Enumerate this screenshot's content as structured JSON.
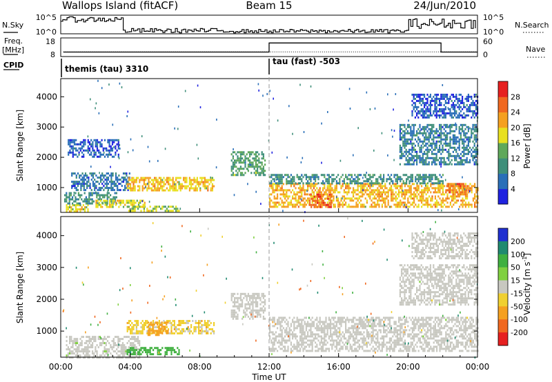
{
  "header": {
    "site": "Wallops Island (fitACF)",
    "beam": "Beam 15",
    "date": "24/Jun/2010"
  },
  "top_panels": {
    "nsky": {
      "left_label": "N.Sky",
      "right_label": "N.Search",
      "ticks_left": [
        "10^5",
        "10^0"
      ],
      "ticks_right": [
        "10^5",
        "10^0"
      ]
    },
    "freq": {
      "left_label_line1": "Freq.",
      "left_label_line2": "[MHz]",
      "right_label": "Nave",
      "ticks_left": [
        "18",
        "8"
      ],
      "ticks_right": [
        "60",
        "0"
      ]
    },
    "cpid": {
      "label": "CPID",
      "segments": [
        {
          "start_hour": 0.0,
          "end_hour": 12.0,
          "text": "themis (tau) 3310"
        },
        {
          "start_hour": 12.0,
          "end_hour": 24.0,
          "text": "tau (fast) -503"
        }
      ]
    }
  },
  "chart_data": [
    {
      "type": "heatmap",
      "title": "",
      "xlabel": "Time UT",
      "ylabel": "Slant Range [km]",
      "xlim": [
        0,
        24
      ],
      "ylim": [
        180,
        4600
      ],
      "x_ticks": [
        "00:00",
        "04:00",
        "08:00",
        "12:00",
        "16:00",
        "20:00",
        "00:00"
      ],
      "y_ticks": [
        "1000",
        "2000",
        "3000",
        "4000"
      ],
      "colorbar": {
        "label": "Power [dB]",
        "range": [
          0,
          30
        ],
        "ticks": [
          "4",
          "8",
          "12",
          "16",
          "20",
          "24",
          "28"
        ],
        "colors": [
          "#1f22e0",
          "#2a6fb8",
          "#3f8f7a",
          "#5fa85a",
          "#e8e020",
          "#f5a020",
          "#f06820",
          "#e62020"
        ]
      },
      "regions": [
        {
          "t0": 0.3,
          "t1": 1.6,
          "r0": 180,
          "r1": 450,
          "mean": 18
        },
        {
          "t0": 0.2,
          "t1": 3.2,
          "r0": 500,
          "r1": 850,
          "mean": 10
        },
        {
          "t0": 0.6,
          "t1": 4.0,
          "r0": 950,
          "r1": 1500,
          "mean": 7
        },
        {
          "t0": 2.0,
          "t1": 4.8,
          "r0": 350,
          "r1": 600,
          "mean": 18
        },
        {
          "t0": 3.8,
          "t1": 6.8,
          "r0": 250,
          "r1": 400,
          "mean": 16
        },
        {
          "t0": 3.8,
          "t1": 8.8,
          "r0": 900,
          "r1": 1350,
          "mean": 20
        },
        {
          "t0": 0.4,
          "t1": 3.3,
          "r0": 2000,
          "r1": 2600,
          "mean": 5
        },
        {
          "t0": 9.8,
          "t1": 11.8,
          "r0": 1400,
          "r1": 2200,
          "mean": 12
        },
        {
          "t0": 12.0,
          "t1": 24.0,
          "r0": 350,
          "r1": 1150,
          "mean": 21
        },
        {
          "t0": 12.0,
          "t1": 22.0,
          "r0": 1150,
          "r1": 1450,
          "mean": 10
        },
        {
          "t0": 14.3,
          "t1": 15.6,
          "r0": 350,
          "r1": 800,
          "mean": 27
        },
        {
          "t0": 22.2,
          "t1": 23.4,
          "r0": 750,
          "r1": 1150,
          "mean": 25
        },
        {
          "t0": 19.5,
          "t1": 24.0,
          "r0": 1800,
          "r1": 3100,
          "mean": 8
        },
        {
          "t0": 20.2,
          "t1": 24.0,
          "r0": 3300,
          "r1": 4100,
          "mean": 5
        }
      ]
    },
    {
      "type": "heatmap",
      "title": "",
      "xlabel": "Time UT",
      "ylabel": "Slant Range [km]",
      "xlim": [
        0,
        24
      ],
      "ylim": [
        180,
        4600
      ],
      "x_ticks": [
        "00:00",
        "04:00",
        "08:00",
        "12:00",
        "16:00",
        "20:00",
        "00:00"
      ],
      "y_ticks": [
        "1000",
        "2000",
        "3000",
        "4000"
      ],
      "colorbar": {
        "label": "Velocity [m s^-1]",
        "range": [
          -250,
          250
        ],
        "ticks": [
          "200",
          "100",
          "50",
          "15",
          "-15",
          "-50",
          "-100",
          "-200"
        ],
        "colors": [
          "#2030d0",
          "#208a70",
          "#40b040",
          "#80d040",
          "#c8c8c0",
          "#f0d030",
          "#f5a020",
          "#f06820",
          "#e62020"
        ]
      },
      "regions": [
        {
          "t0": 0.3,
          "t1": 4.5,
          "r0": 180,
          "r1": 850,
          "mean": 5
        },
        {
          "t0": 3.8,
          "t1": 6.8,
          "r0": 250,
          "r1": 500,
          "mean": 60
        },
        {
          "t0": 3.8,
          "t1": 8.8,
          "r0": 900,
          "r1": 1350,
          "mean": -20
        },
        {
          "t0": 5.0,
          "t1": 6.2,
          "r0": 900,
          "r1": 1300,
          "mean": -60
        },
        {
          "t0": 9.8,
          "t1": 11.8,
          "r0": 1400,
          "r1": 2200,
          "mean": 0
        },
        {
          "t0": 12.0,
          "t1": 24.0,
          "r0": 350,
          "r1": 1450,
          "mean": 0
        },
        {
          "t0": 19.5,
          "t1": 24.0,
          "r0": 1800,
          "r1": 3100,
          "mean": 0
        },
        {
          "t0": 20.2,
          "t1": 24.0,
          "r0": 3300,
          "r1": 4100,
          "mean": 0
        }
      ]
    }
  ],
  "colors": {
    "dashed_marker": "#999999"
  }
}
